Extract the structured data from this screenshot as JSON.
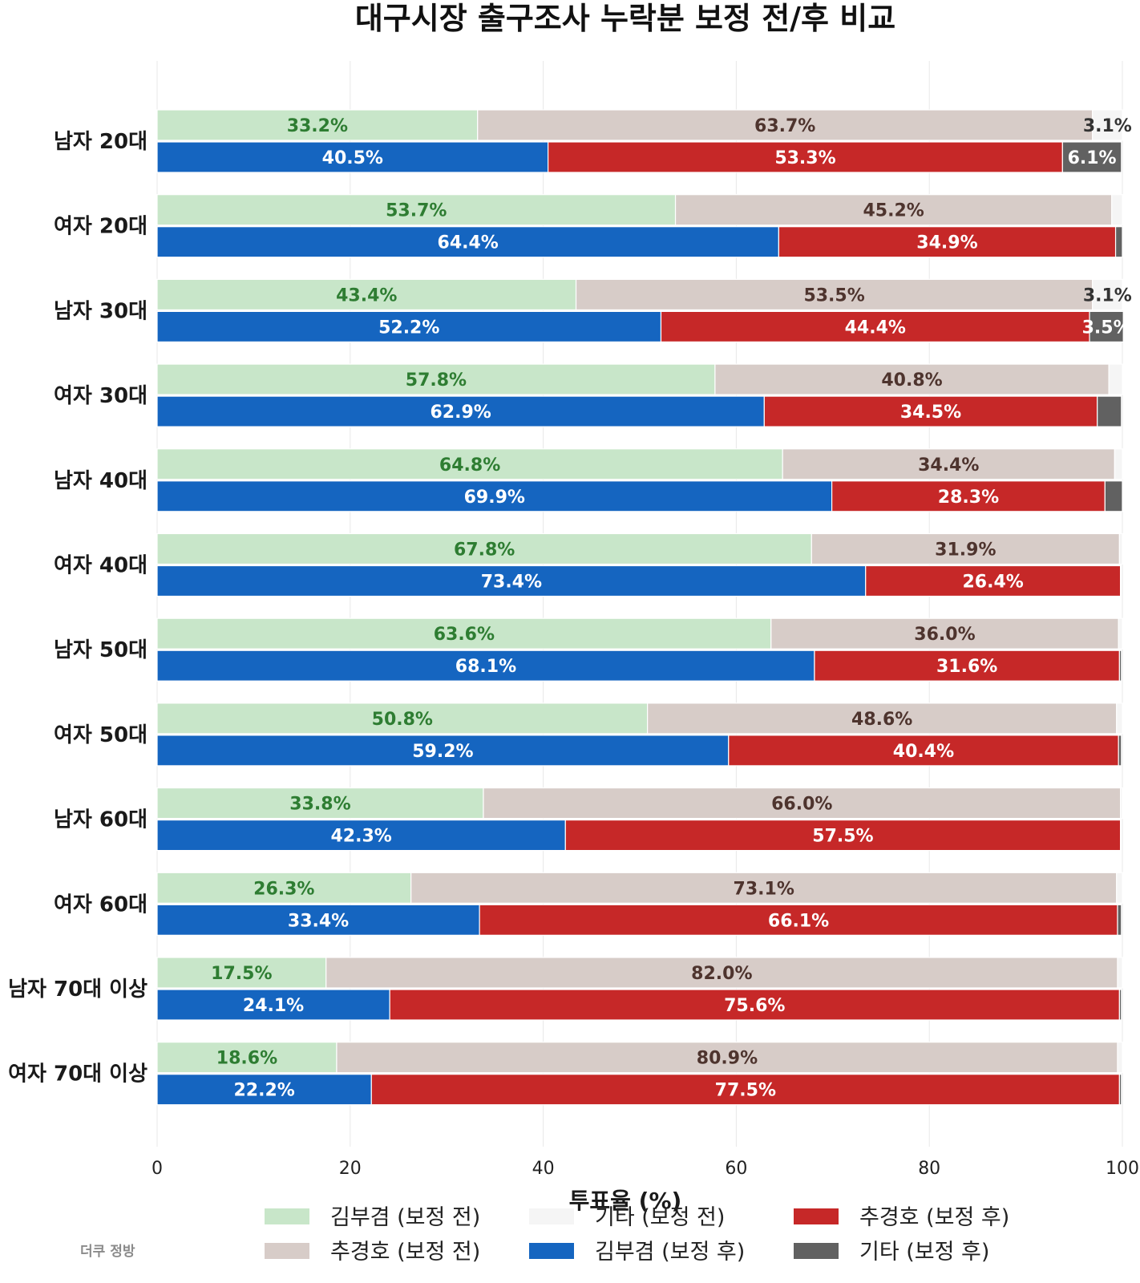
{
  "chart_data": {
    "type": "bar",
    "orientation": "horizontal",
    "stacked": true,
    "title": "대구시장 출구조사 누락분 보정 전/후 비교",
    "xlabel": "투표율 (%)",
    "ylabel": "",
    "xlim": [
      0,
      100
    ],
    "xticks": [
      0,
      20,
      40,
      60,
      80,
      100
    ],
    "grid": "vertical",
    "legend_position": "bottom",
    "categories": [
      "남자 20대",
      "여자 20대",
      "남자 30대",
      "여자 30대",
      "남자 40대",
      "여자 40대",
      "남자 50대",
      "여자 50대",
      "남자 60대",
      "여자 60대",
      "남자 70대 이상",
      "여자 70대 이상"
    ],
    "groups": [
      {
        "key": "before",
        "series": [
          {
            "name": "김부겸 (보정 전)",
            "color": "#c8e6c9",
            "label_color": "#2e7d32",
            "values": [
              33.2,
              53.7,
              43.4,
              57.8,
              64.8,
              67.8,
              63.6,
              50.8,
              33.8,
              26.3,
              17.5,
              18.6
            ]
          },
          {
            "name": "추경호 (보정 전)",
            "color": "#d7ccc8",
            "label_color": "#4e342e",
            "values": [
              63.7,
              45.2,
              53.5,
              40.8,
              34.4,
              31.9,
              36.0,
              48.6,
              66.0,
              73.1,
              82.0,
              80.9
            ]
          },
          {
            "name": "기타 (보정 전)",
            "color": "#f5f5f5",
            "label_color": "#333333",
            "values": [
              3.1,
              1.1,
              3.1,
              1.4,
              0.8,
              0.3,
              0.4,
              0.6,
              0.2,
              0.6,
              0.5,
              0.5
            ]
          }
        ]
      },
      {
        "key": "after",
        "series": [
          {
            "name": "김부겸 (보정 후)",
            "color": "#1565c0",
            "label_color": "#ffffff",
            "values": [
              40.5,
              64.4,
              52.2,
              62.9,
              69.9,
              73.4,
              68.1,
              59.2,
              42.3,
              33.4,
              24.1,
              22.2
            ]
          },
          {
            "name": "추경호 (보정 후)",
            "color": "#c62828",
            "label_color": "#ffffff",
            "values": [
              53.3,
              34.9,
              44.4,
              34.5,
              28.3,
              26.4,
              31.6,
              40.4,
              57.5,
              66.1,
              75.6,
              77.5
            ]
          },
          {
            "name": "기타 (보정 후)",
            "color": "#616161",
            "label_color": "#ffffff",
            "values": [
              6.1,
              0.7,
              3.5,
              2.5,
              1.8,
              0.0,
              0.2,
              0.3,
              0.0,
              0.4,
              0.2,
              0.2
            ]
          }
        ]
      }
    ],
    "label_min_value": 3,
    "watermark": "더쿠 정방"
  }
}
